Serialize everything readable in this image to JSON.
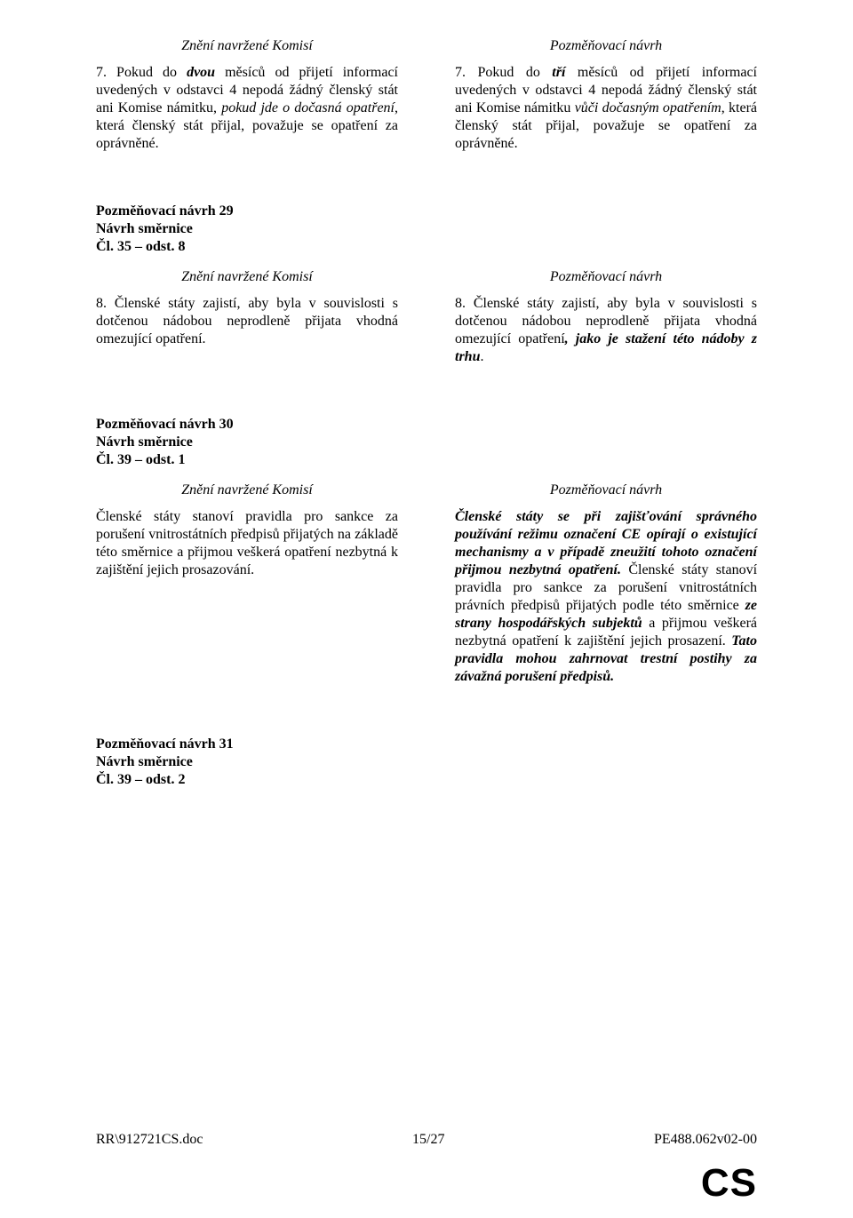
{
  "labels": {
    "komisi": "Znění navržené Komisí",
    "navrh": "Pozměňovací návrh"
  },
  "amend29": {
    "heading_l1": "Pozměňovací návrh 29",
    "heading_l2": "Návrh směrnice",
    "heading_l3": "Čl. 35 – odst. 8"
  },
  "amend30": {
    "heading_l1": "Pozměňovací návrh 30",
    "heading_l2": "Návrh směrnice",
    "heading_l3": "Čl. 39 – odst. 1"
  },
  "amend31": {
    "heading_l1": "Pozměňovací návrh 31",
    "heading_l2": "Návrh směrnice",
    "heading_l3": "Čl. 39 – odst. 2"
  },
  "footer": {
    "left": "RR\\912721CS.doc",
    "center": "15/27",
    "right": "PE488.062v02-00",
    "lang": "CS"
  },
  "t": {
    "p1a": "7. Pokud do ",
    "p1b": "dvou",
    "p1c": " měsíců od přijetí informací uvedených v odstavci 4 nepodá žádný členský stát ani Komise námitku, ",
    "p1d": "pokud jde o dočasná opatření",
    "p1e": ", která členský stát přijal, považuje se opatření za oprávněné.",
    "p2a": "7. Pokud do ",
    "p2b": "tří",
    "p2c": " měsíců od přijetí informací uvedených v odstavci 4 nepodá žádný členský stát ani Komise námitku ",
    "p2d": "vůči dočasným opatřením",
    "p2e": ", která členský stát přijal, považuje se opatření za oprávněné.",
    "p3": "8. Členské státy zajistí, aby byla v souvislosti s dotčenou nádobou neprodleně přijata vhodná omezující opatření.",
    "p4a": "8. Členské státy zajistí, aby byla v souvislosti s dotčenou nádobou neprodleně přijata vhodná omezující opatření",
    "p4b": ", jako je stažení této nádoby z trhu",
    "p4c": ".",
    "p5": "Členské státy stanoví pravidla pro sankce za porušení vnitrostátních předpisů přijatých na základě této směrnice a přijmou veškerá opatření nezbytná k zajištění jejich prosazování.",
    "p6a": "Členské státy se při zajišťování správného používání režimu označení CE opírají o existující mechanismy a v případě zneužití tohoto označení přijmou nezbytná opatření.",
    "p6b": " Členské státy stanoví pravidla pro sankce za porušení vnitrostátních právních předpisů přijatých podle této směrnice ",
    "p6c": "ze strany hospodářských subjektů",
    "p6d": " a přijmou veškerá nezbytná opatření k zajištění jejich prosazení. ",
    "p6e": "Tato pravidla mohou zahrnovat trestní postihy za závažná porušení předpisů."
  }
}
